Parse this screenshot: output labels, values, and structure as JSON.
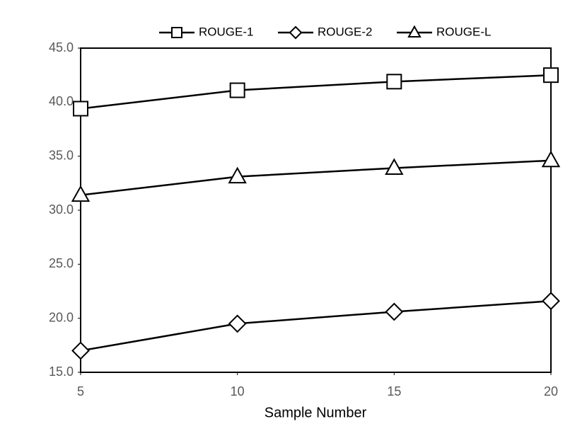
{
  "chart_data": {
    "type": "line",
    "xlabel": "Sample Number",
    "x": [
      5,
      10,
      15,
      20
    ],
    "series": [
      {
        "name": "ROUGE-1",
        "color": "#000000",
        "marker": "square",
        "values": [
          39.4,
          41.1,
          41.9,
          42.5
        ]
      },
      {
        "name": "ROUGE-2",
        "color": "#000000",
        "marker": "diamond",
        "values": [
          17.0,
          19.5,
          20.6,
          21.6
        ]
      },
      {
        "name": "ROUGE-L",
        "color": "#000000",
        "marker": "triangle",
        "values": [
          31.4,
          33.1,
          33.9,
          34.6
        ]
      }
    ],
    "xlim": [
      5,
      20
    ],
    "xticks": [
      5,
      10,
      15,
      20
    ],
    "ylim": [
      15,
      45
    ],
    "yticks": [
      {
        "value": 15,
        "label": "15.0"
      },
      {
        "value": 20,
        "label": "20.0"
      },
      {
        "value": 25,
        "label": "25.0"
      },
      {
        "value": 30,
        "label": "30.0"
      },
      {
        "value": 35,
        "label": "35.0"
      },
      {
        "value": 40,
        "label": "40.0"
      },
      {
        "value": 45,
        "label": "45.0"
      }
    ],
    "grid": false,
    "legend": "top"
  }
}
